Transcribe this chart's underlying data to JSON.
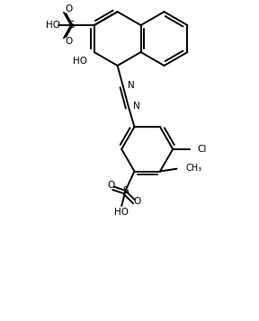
{
  "bg_color": "#ffffff",
  "line_color": "#000000",
  "text_color": "#000000",
  "lw": 1.4,
  "figsize": [
    2.88,
    3.57
  ],
  "dpi": 100
}
